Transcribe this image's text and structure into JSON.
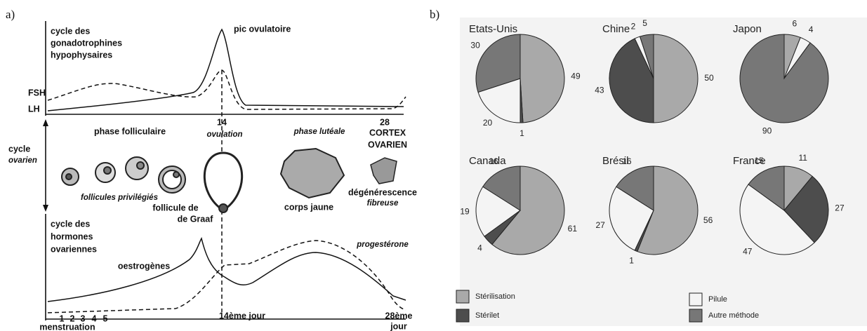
{
  "panel_a": {
    "label": "a)",
    "top_title": [
      "cycle des",
      "gonadotrophines",
      "hypophysaires"
    ],
    "peak": "pic ovulatoire",
    "fsh": "FSH",
    "lh": "LH",
    "day14": "14",
    "day28": "28",
    "phase_follicular": "phase folliculaire",
    "ovulation": "ovulation",
    "phase_luteal": "phase lutéale",
    "cortex": [
      "CORTEX",
      "OVARIEN"
    ],
    "ovarian_cycle": [
      "cycle",
      "ovarien"
    ],
    "privileged": "follicules privilégiés",
    "graaf": [
      "follicule de",
      "de Graaf"
    ],
    "corpus": "corps jaune",
    "degeneration": [
      "dégénérescence",
      "fibreuse"
    ],
    "bottom_title": [
      "cycle des",
      "hormones",
      "ovariennes"
    ],
    "estrogen": "oestrogènes",
    "progesterone": "progestérone",
    "day14_bottom": "14ème jour",
    "day28_bottom": [
      "28ème",
      "jour"
    ],
    "days": [
      "1",
      "2",
      "3",
      "4",
      "5"
    ],
    "menstruation": "menstruation"
  },
  "panel_b_label": "b)",
  "chart_data": [
    {
      "type": "pie",
      "title": "Etats-Unis",
      "categories": [
        "Stérilisation",
        "Stérilet",
        "Pilule",
        "Autre méthode"
      ],
      "values": [
        49,
        1,
        20,
        30
      ],
      "colors": [
        "#a9a9a9",
        "#4d4d4d",
        "#f4f4f4",
        "#777777"
      ]
    },
    {
      "type": "pie",
      "title": "Chine",
      "categories": [
        "Stérilisation",
        "Stérilet",
        "Pilule",
        "Autre méthode"
      ],
      "values": [
        50,
        43,
        2,
        5
      ],
      "colors": [
        "#a9a9a9",
        "#4d4d4d",
        "#f4f4f4",
        "#777777"
      ]
    },
    {
      "type": "pie",
      "title": "Japon",
      "categories": [
        "Stérilisation",
        "Pilule",
        "Autre méthode"
      ],
      "values": [
        6,
        4,
        90
      ],
      "colors": [
        "#a9a9a9",
        "#f4f4f4",
        "#777777"
      ]
    },
    {
      "type": "pie",
      "title": "Canada",
      "categories": [
        "Stérilisation",
        "Stérilet",
        "Pilule",
        "Autre méthode"
      ],
      "values": [
        61,
        4,
        19,
        16
      ],
      "colors": [
        "#a9a9a9",
        "#4d4d4d",
        "#f4f4f4",
        "#777777"
      ]
    },
    {
      "type": "pie",
      "title": "Brésil",
      "categories": [
        "Stérilisation",
        "Stérilet",
        "Pilule",
        "Autre méthode"
      ],
      "values": [
        56,
        1,
        27,
        16
      ],
      "colors": [
        "#a9a9a9",
        "#4d4d4d",
        "#f4f4f4",
        "#777777"
      ]
    },
    {
      "type": "pie",
      "title": "France",
      "categories": [
        "Stérilisation",
        "Stérilet",
        "Pilule",
        "Autre méthode"
      ],
      "values": [
        11,
        27,
        47,
        15
      ],
      "colors": [
        "#a9a9a9",
        "#4d4d4d",
        "#f4f4f4",
        "#777777"
      ]
    }
  ]
}
